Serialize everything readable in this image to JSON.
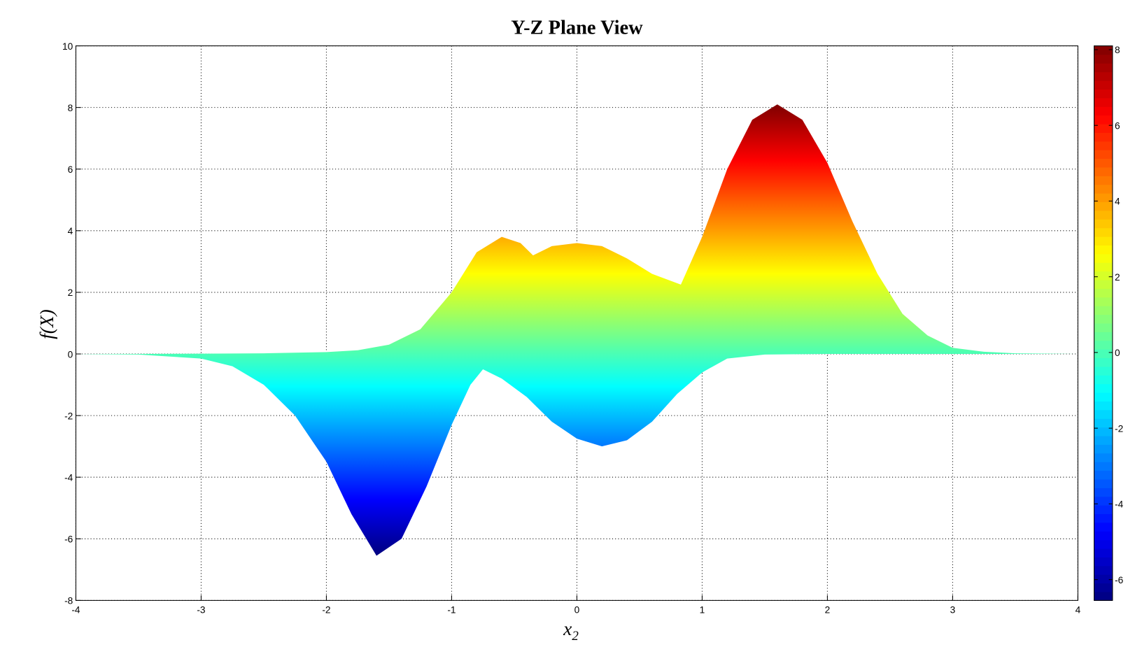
{
  "chart_data": {
    "type": "area",
    "title": "Y-Z Plane View",
    "xlabel": "x",
    "xlabel_subscript": "2",
    "ylabel": "f(X)",
    "xlim": [
      -4,
      4
    ],
    "ylim": [
      -8,
      10
    ],
    "xticks": [
      -4,
      -3,
      -2,
      -1,
      0,
      1,
      2,
      3,
      4
    ],
    "yticks": [
      -8,
      -6,
      -4,
      -2,
      0,
      2,
      4,
      6,
      8,
      10
    ],
    "grid": true,
    "colormap": "jet",
    "colorbar": {
      "position": "right",
      "range": [
        -6.55,
        8.1
      ],
      "ticks": [
        -6,
        -4,
        -2,
        0,
        2,
        4,
        6,
        8
      ]
    },
    "series": [
      {
        "role": "upper envelope",
        "x": [
          -4,
          -3.5,
          -3,
          -2.5,
          -2,
          -1.75,
          -1.5,
          -1.25,
          -1,
          -0.8,
          -0.6,
          -0.45,
          -0.35,
          -0.2,
          0,
          0.2,
          0.4,
          0.6,
          0.83,
          1,
          1.2,
          1.4,
          1.6,
          1.8,
          2,
          2.2,
          2.4,
          2.6,
          2.8,
          3,
          3.25,
          3.5,
          4
        ],
        "values": [
          0,
          0,
          0.01,
          0.02,
          0.06,
          0.12,
          0.3,
          0.8,
          2.0,
          3.3,
          3.8,
          3.6,
          3.2,
          3.5,
          3.6,
          3.5,
          3.1,
          2.6,
          2.25,
          3.8,
          6.0,
          7.6,
          8.1,
          7.6,
          6.2,
          4.3,
          2.6,
          1.3,
          0.6,
          0.2,
          0.07,
          0.02,
          0
        ]
      },
      {
        "role": "lower envelope",
        "x": [
          -4,
          -3.5,
          -3,
          -2.75,
          -2.5,
          -2.25,
          -2,
          -1.8,
          -1.6,
          -1.4,
          -1.2,
          -1,
          -0.85,
          -0.75,
          -0.6,
          -0.4,
          -0.2,
          0,
          0.2,
          0.4,
          0.6,
          0.8,
          1,
          1.2,
          1.5,
          2,
          4
        ],
        "values": [
          0,
          -0.02,
          -0.15,
          -0.4,
          -1.0,
          -2.0,
          -3.5,
          -5.2,
          -6.55,
          -6.0,
          -4.3,
          -2.3,
          -1.0,
          -0.5,
          -0.8,
          -1.4,
          -2.2,
          -2.75,
          -3.0,
          -2.8,
          -2.2,
          -1.3,
          -0.6,
          -0.15,
          -0.02,
          0,
          0
        ]
      }
    ]
  }
}
